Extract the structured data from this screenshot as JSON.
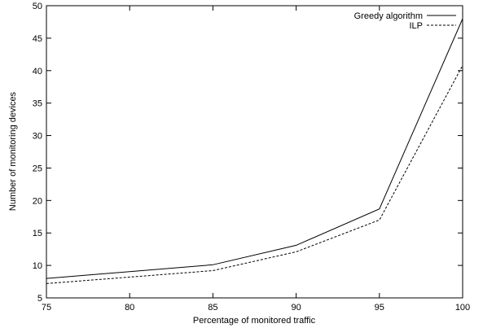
{
  "chart_data": {
    "type": "line",
    "title": "",
    "xlabel": "Percentage of monitored traffic",
    "ylabel": "Number of monitoring devices",
    "xlim": [
      75,
      100
    ],
    "ylim": [
      5,
      50
    ],
    "xticks": [
      "75",
      "80",
      "85",
      "90",
      "95",
      "100"
    ],
    "yticks": [
      "5",
      "10",
      "15",
      "20",
      "25",
      "30",
      "35",
      "40",
      "45",
      "50"
    ],
    "grid": false,
    "legend_position": "top-right",
    "series": [
      {
        "name": "Greedy algorithm",
        "style": "solid",
        "color": "#000000",
        "x": [
          75,
          85,
          90,
          95,
          100
        ],
        "y": [
          8,
          10.1,
          13.1,
          18.7,
          48
        ]
      },
      {
        "name": "ILP",
        "style": "dashed",
        "color": "#000000",
        "x": [
          75,
          85,
          90,
          95,
          100
        ],
        "y": [
          7.2,
          9.2,
          12.1,
          17,
          40.8
        ]
      }
    ]
  }
}
